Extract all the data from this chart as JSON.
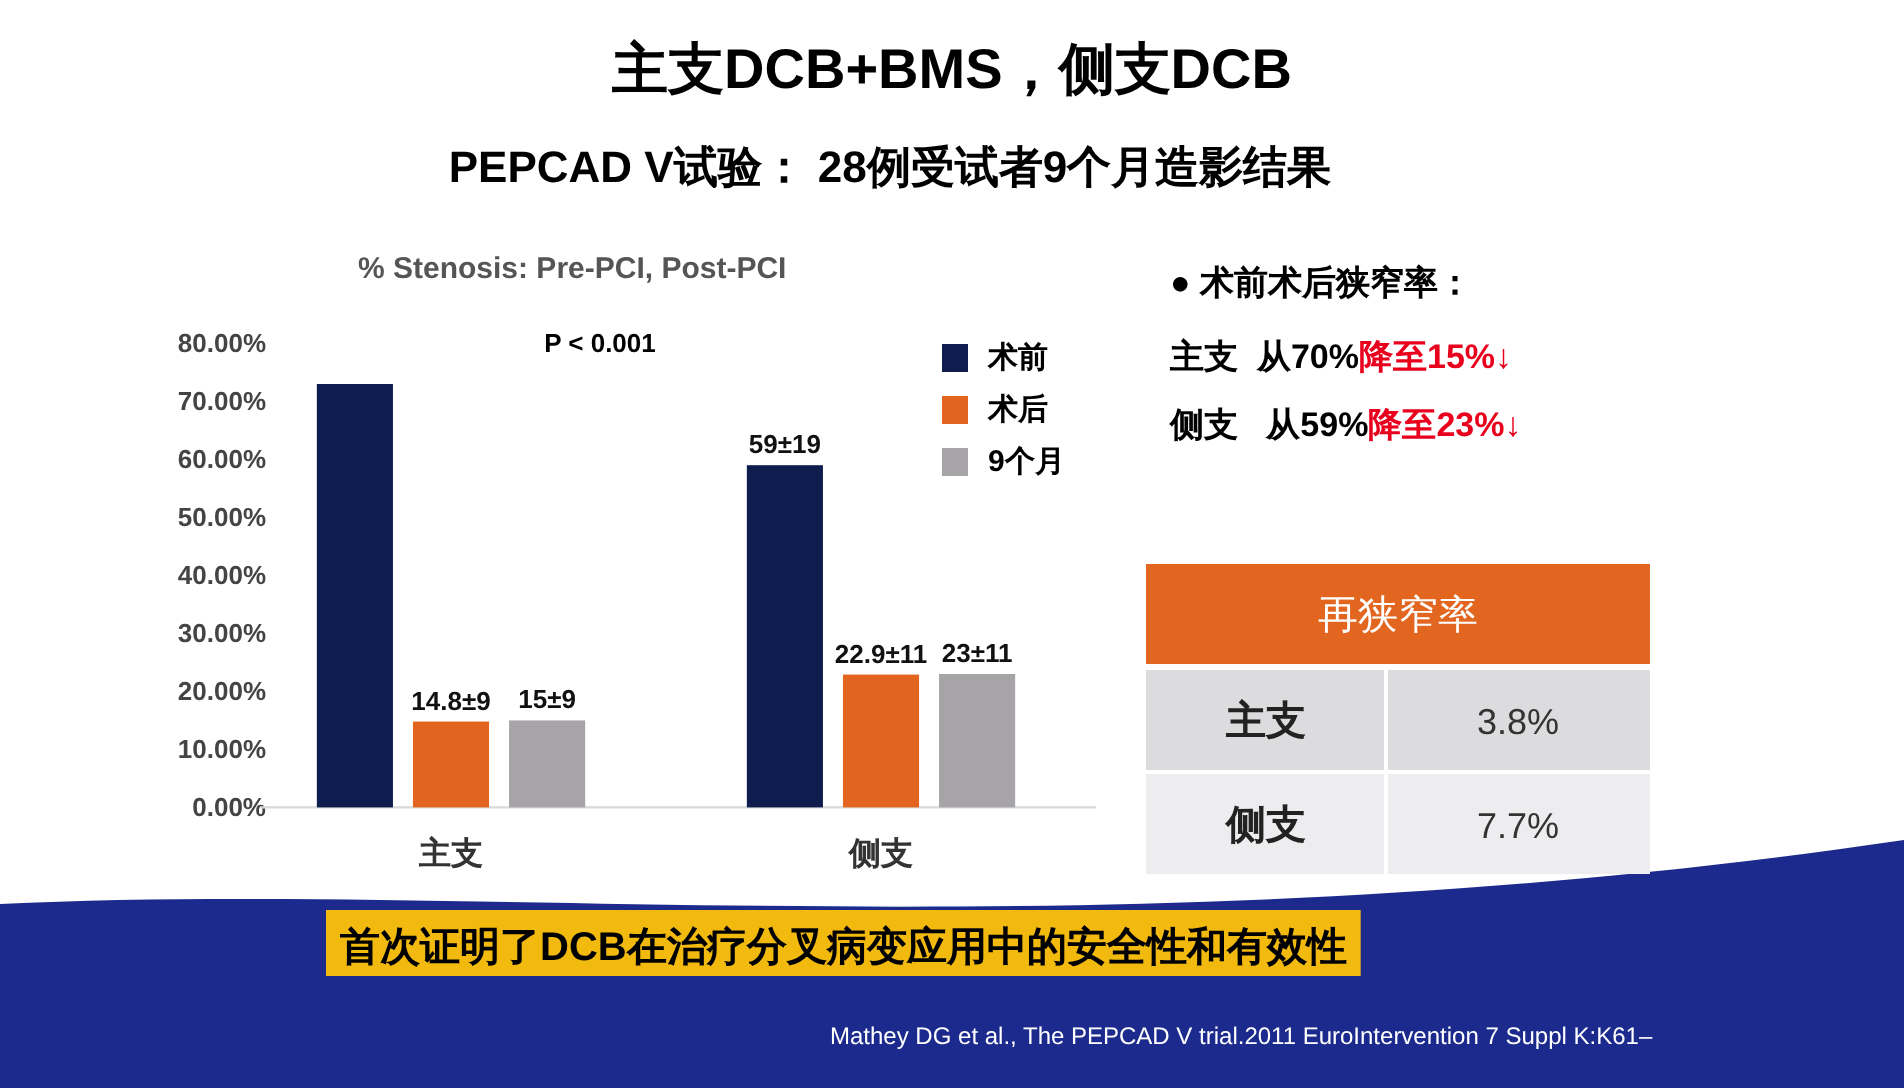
{
  "chart_data": [
    {
      "type": "other",
      "title": "主支DCB+BMS，侧支DCB",
      "subtitle": "PEPCAD V试验： 28例受试者9个月造影结果",
      "annotations": [
        "首次证明了DCB在治疗分叉病变应用中的安全性和有效性",
        "Mathey DG et al., The PEPCAD V trial.2011 EuroIntervention 7 Suppl K:K61–"
      ]
    },
    {
      "type": "bar",
      "title": "% Stenosis: Pre-PCI, Post-PCI",
      "categories": [
        "主支",
        "侧支"
      ],
      "series": [
        {
          "name": "术前",
          "color": "#0e1c4e",
          "values": [
            73,
            59
          ],
          "value_labels": [
            null,
            "59±19"
          ]
        },
        {
          "name": "术后",
          "color": "#e2641f",
          "values": [
            14.8,
            22.9
          ],
          "value_labels": [
            "14.8±9",
            "22.9±11"
          ]
        },
        {
          "name": "9个月",
          "color": "#a6a4a7",
          "values": [
            15,
            23
          ],
          "value_labels": [
            "15±9",
            "23±11"
          ]
        }
      ],
      "ylim": [
        0,
        80
      ],
      "yticks": [
        {
          "value": 0,
          "label": "0.00%"
        },
        {
          "value": 10,
          "label": "10.00%"
        },
        {
          "value": 20,
          "label": "20.00%"
        },
        {
          "value": 30,
          "label": "30.00%"
        },
        {
          "value": 40,
          "label": "40.00%"
        },
        {
          "value": 50,
          "label": "50.00%"
        },
        {
          "value": 60,
          "label": "60.00%"
        },
        {
          "value": 70,
          "label": "70.00%"
        },
        {
          "value": 80,
          "label": "80.00%"
        }
      ],
      "legend": "top right",
      "annotations": [
        "P < 0.001"
      ]
    },
    {
      "type": "other",
      "annotations": [
        "● 术前术后狭窄率：",
        "主支  从70%",
        "降至15%↓",
        "侧支   从59%",
        "降至23%↓"
      ]
    },
    {
      "type": "other",
      "title": "再狭窄率",
      "categories": [
        "主支",
        "侧支"
      ],
      "value_labels": [
        "3.8%",
        "7.7%"
      ]
    }
  ]
}
